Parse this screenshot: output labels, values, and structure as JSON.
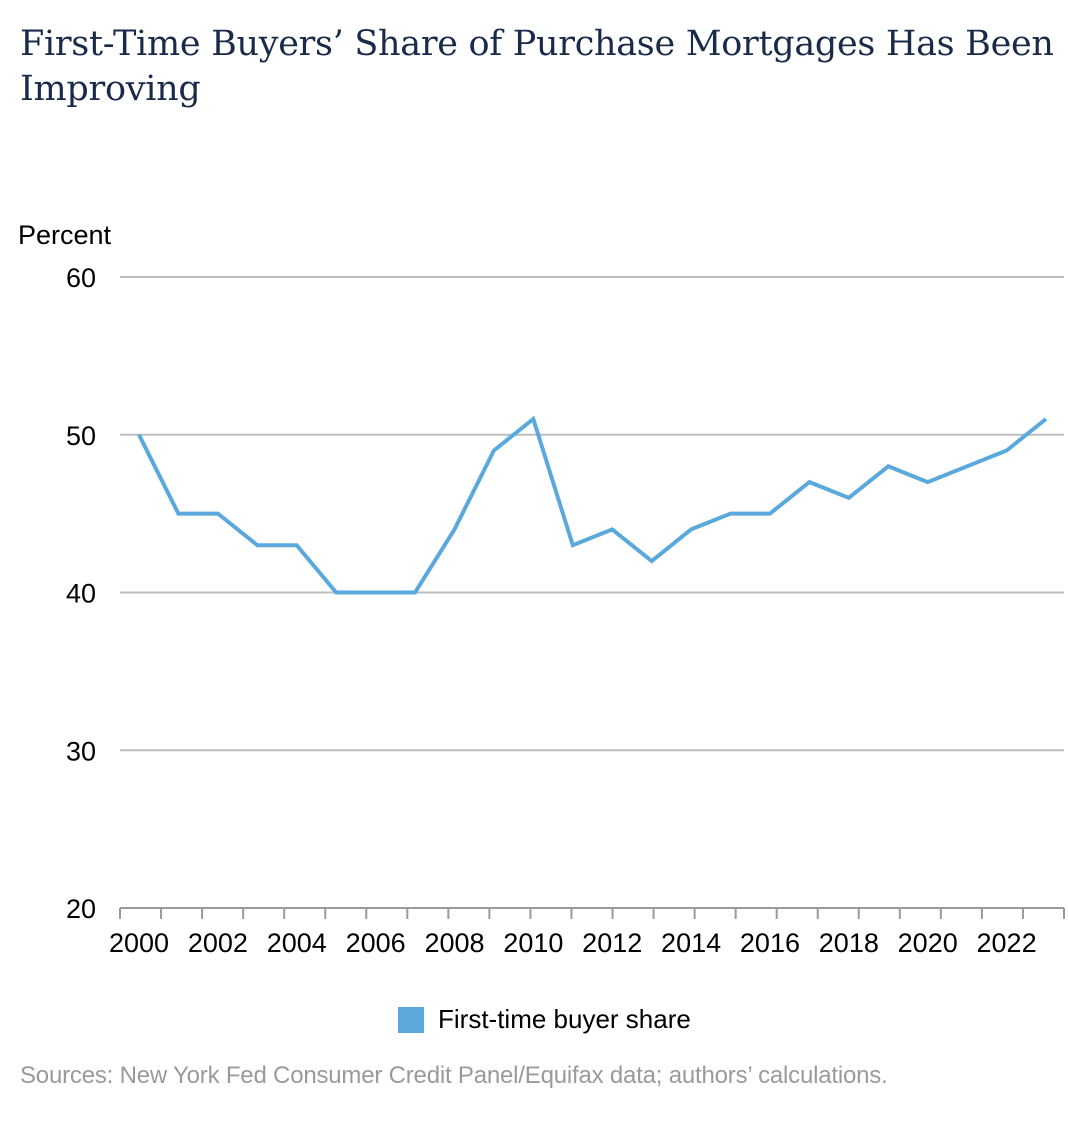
{
  "title": "First-Time Buyers’ Share of Purchase Mortgages Has Been Improving",
  "source": "Sources: New York Fed Consumer Credit Panel/Equifax data; authors’ calculations.",
  "colors": {
    "series": "#5ba9dc",
    "grid": "#bdbdbd",
    "axis": "#9a9a9a",
    "title": "#1a2b4a",
    "source": "#9a9a9a"
  },
  "chart_data": {
    "type": "line",
    "title": "First-Time Buyers’ Share of Purchase Mortgages Has Been Improving",
    "ylabel": "Percent",
    "xlabel": "",
    "ylim": [
      20,
      60
    ],
    "yticks": [
      20,
      30,
      40,
      50,
      60
    ],
    "xlim": [
      2000,
      2023
    ],
    "xticks": [
      "2000",
      "2002",
      "2004",
      "2006",
      "2008",
      "2010",
      "2012",
      "2014",
      "2016",
      "2018",
      "2020",
      "2022"
    ],
    "grid": true,
    "legend_position": "bottom-center",
    "x": [
      2000,
      2001,
      2002,
      2003,
      2004,
      2005,
      2006,
      2007,
      2008,
      2009,
      2010,
      2011,
      2012,
      2013,
      2014,
      2015,
      2016,
      2017,
      2018,
      2019,
      2020,
      2021,
      2022,
      2023
    ],
    "series": [
      {
        "name": "First-time buyer share",
        "values": [
          50,
          45,
          45,
          43,
          43,
          40,
          40,
          40,
          44,
          49,
          51,
          43,
          44,
          42,
          44,
          45,
          45,
          47,
          46,
          48,
          47,
          48,
          49,
          51
        ]
      }
    ]
  }
}
